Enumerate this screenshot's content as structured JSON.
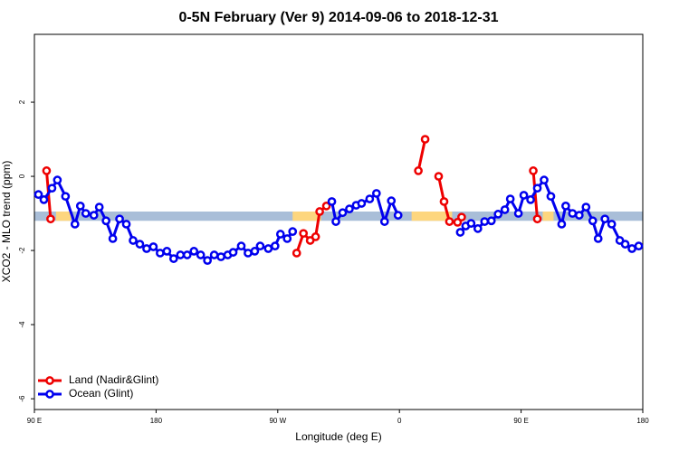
{
  "chart_data": {
    "type": "line",
    "title": "0-5N February (Ver 9)   2014-09-06 to 2018-12-31",
    "x_label": "Longitude (deg E)",
    "y_label": "XCO2 - MLO trend (ppm)",
    "xlim": [
      90,
      540
    ],
    "ylim": [
      -6.29,
      3.83
    ],
    "xticks": [
      {
        "value": 90,
        "label": "90 E"
      },
      180,
      {
        "value": 270,
        "label": "90 W"
      },
      {
        "value": 360,
        "label": "0"
      },
      {
        "value": 450,
        "label": "90 E"
      },
      {
        "value": 540,
        "label": "180"
      }
    ],
    "yticks": [
      -6,
      -4,
      -2,
      0,
      2
    ],
    "legend": "bottom-left",
    "band": {
      "y": [
        -1.2,
        -0.95
      ],
      "color": "#a9bed8",
      "segments": [
        {
          "x": [
            106,
            117
          ],
          "color": "#fdd67e"
        },
        {
          "x": [
            281,
            302
          ],
          "color": "#fdd67e"
        },
        {
          "x": [
            369,
            399
          ],
          "color": "#fdd67e"
        },
        {
          "x": [
            466,
            474
          ],
          "color": "#fdd67e"
        }
      ]
    },
    "series": [
      {
        "name": "Land (Nadir&Glint)",
        "color": "#ee0000",
        "x": [
          99,
          102,
          null,
          284,
          289,
          294,
          298,
          301,
          306,
          null,
          374,
          379,
          null,
          389,
          393,
          397,
          403,
          406,
          null,
          459,
          462
        ],
        "values": [
          0.15,
          -1.15,
          null,
          -2.07,
          -1.54,
          -1.73,
          -1.63,
          -0.95,
          -0.8,
          null,
          0.15,
          1.0,
          null,
          0.0,
          -0.68,
          -1.22,
          -1.24,
          -1.1,
          null,
          0.15,
          -1.15
        ]
      },
      {
        "name": "Ocean (Glint)",
        "color": "#0000ee",
        "x": [
          93,
          97,
          103,
          107,
          113,
          120,
          124,
          128,
          134,
          138,
          143,
          148,
          153,
          158,
          163,
          168,
          173,
          178,
          183,
          188,
          193,
          198,
          203,
          208,
          213,
          218,
          223,
          228,
          233,
          237,
          243,
          248,
          253,
          257,
          263,
          268,
          272,
          277,
          281,
          null,
          310,
          313,
          318,
          323,
          328,
          332,
          338,
          343,
          349,
          354,
          359,
          null,
          405,
          409,
          413,
          418,
          423,
          428,
          433,
          438,
          442,
          448,
          452,
          457,
          462,
          467,
          472,
          480,
          483,
          488,
          493,
          498,
          503,
          507,
          512,
          517,
          523,
          527,
          532,
          537
        ],
        "values": [
          -0.49,
          -0.63,
          -0.32,
          -0.1,
          -0.54,
          -1.29,
          -0.8,
          -1.0,
          -1.05,
          -0.83,
          -1.2,
          -1.68,
          -1.15,
          -1.29,
          -1.73,
          -1.83,
          -1.95,
          -1.9,
          -2.07,
          -2.02,
          -2.22,
          -2.12,
          -2.12,
          -2.02,
          -2.12,
          -2.27,
          -2.12,
          -2.17,
          -2.12,
          -2.05,
          -1.88,
          -2.07,
          -2.02,
          -1.88,
          -1.95,
          -1.88,
          -1.56,
          -1.68,
          -1.49,
          null,
          -0.68,
          -1.22,
          -0.98,
          -0.88,
          -0.78,
          -0.73,
          -0.61,
          -0.46,
          -1.22,
          -0.66,
          -1.05,
          null,
          -1.51,
          -1.34,
          -1.27,
          -1.41,
          -1.22,
          -1.2,
          -1.02,
          -0.9,
          -0.61,
          -1.0,
          -0.51,
          -0.63,
          -0.32,
          -0.1,
          -0.54,
          -1.29,
          -0.8,
          -1.0,
          -1.05,
          -0.83,
          -1.2,
          -1.68,
          -1.15,
          -1.29,
          -1.73,
          -1.83,
          -1.95,
          -1.88
        ]
      }
    ]
  }
}
